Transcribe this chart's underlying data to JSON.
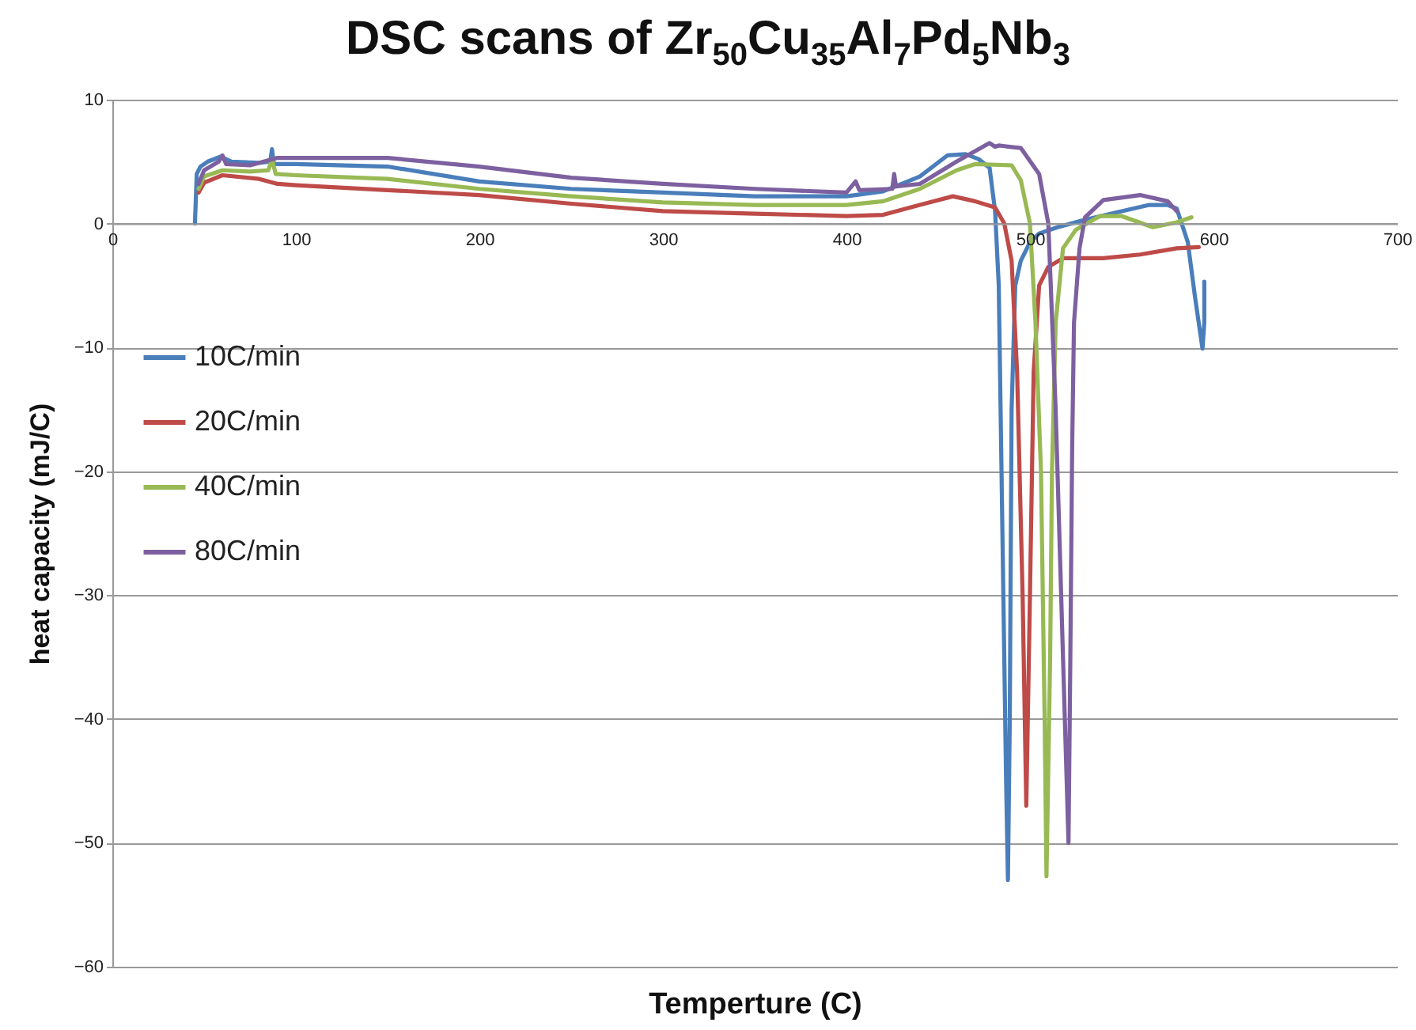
{
  "chart_data": {
    "type": "line",
    "title": "DSC scans of Zr$_{50}$Cu$_{35}$Al$_{7}$Pd$_{5}$Nb$_{3}$",
    "xlabel": "Temperture (C)",
    "ylabel": "heat capacity (mJ/C)",
    "xlim": [
      0,
      700
    ],
    "xticks": [
      0,
      100,
      200,
      300,
      400,
      500,
      600,
      700
    ],
    "ylim": [
      -60,
      10
    ],
    "yticks": [
      -60,
      -50,
      -40,
      -30,
      -20,
      -10,
      0,
      10
    ],
    "grid": "y",
    "legend": "left",
    "line_style": "solid",
    "series": [
      {
        "name": "10C/min",
        "color": "#4a7ebb",
        "x": [
          45,
          46,
          48,
          52,
          59,
          65,
          80,
          86,
          87,
          88,
          100,
          150,
          200,
          250,
          300,
          350,
          400,
          420,
          440,
          455,
          465,
          472,
          478,
          481,
          483,
          485,
          487,
          488,
          489,
          490,
          492,
          495,
          500,
          505,
          515,
          530,
          550,
          565,
          575,
          580,
          586,
          590,
          594,
          595,
          595
        ],
        "values": [
          0,
          4,
          4.6,
          5.0,
          5.4,
          5.0,
          4.9,
          5.0,
          6.0,
          4.8,
          4.8,
          4.6,
          3.4,
          2.8,
          2.5,
          2.2,
          2.2,
          2.6,
          3.8,
          5.5,
          5.6,
          5.2,
          4.5,
          1,
          -5,
          -25,
          -45,
          -53,
          -40,
          -15,
          -5,
          -3,
          -1.5,
          -0.8,
          -0.3,
          0.3,
          1.0,
          1.5,
          1.5,
          1.2,
          -1.5,
          -6,
          -10.1,
          -8,
          -4.7
        ]
      },
      {
        "name": "20C/min",
        "color": "#be4b48",
        "x": [
          47,
          50,
          60,
          80,
          90,
          100,
          150,
          200,
          250,
          300,
          350,
          400,
          420,
          440,
          458,
          470,
          481,
          486,
          490,
          493,
          496,
          498,
          500,
          502,
          505,
          510,
          518,
          540,
          560,
          580,
          592
        ],
        "values": [
          2.5,
          3.3,
          3.9,
          3.6,
          3.2,
          3.1,
          2.7,
          2.3,
          1.6,
          1.0,
          0.8,
          0.6,
          0.7,
          1.5,
          2.2,
          1.8,
          1.3,
          0,
          -3,
          -12,
          -30,
          -47,
          -30,
          -12,
          -5,
          -3.5,
          -2.8,
          -2.8,
          -2.5,
          -2.0,
          -1.9
        ]
      },
      {
        "name": "40C/min",
        "color": "#98b954",
        "x": [
          47,
          50,
          60,
          75,
          85,
          87,
          89,
          100,
          150,
          200,
          250,
          300,
          350,
          400,
          420,
          440,
          460,
          470,
          490,
          495,
          500,
          503,
          506,
          508,
          509,
          511,
          512,
          514,
          518,
          525,
          538,
          550,
          567,
          580,
          588
        ],
        "values": [
          2.8,
          3.8,
          4.3,
          4.2,
          4.3,
          5.2,
          4.0,
          3.9,
          3.6,
          2.8,
          2.2,
          1.7,
          1.5,
          1.5,
          1.8,
          2.8,
          4.3,
          4.8,
          4.7,
          3.5,
          0,
          -8,
          -20,
          -40,
          -52.7,
          -35,
          -20,
          -8,
          -2,
          -0.5,
          0.6,
          0.6,
          -0.3,
          0.1,
          0.5
        ]
      },
      {
        "name": "80C/min",
        "color": "#7d60a0",
        "x": [
          47,
          50,
          58,
          60,
          62,
          75,
          90,
          150,
          200,
          250,
          300,
          350,
          400,
          405,
          407,
          425,
          426,
          427,
          440,
          460,
          478,
          481,
          483,
          495,
          505,
          510,
          514,
          518,
          521,
          522,
          523,
          524,
          527,
          530,
          540,
          560,
          575,
          580
        ],
        "values": [
          3.2,
          4.3,
          5.0,
          5.5,
          4.8,
          4.7,
          5.3,
          5.3,
          4.6,
          3.7,
          3.2,
          2.8,
          2.5,
          3.4,
          2.7,
          2.8,
          4.0,
          3.0,
          3.2,
          5.0,
          6.5,
          6.2,
          6.3,
          6.1,
          4.0,
          0,
          -15,
          -35,
          -50,
          -35,
          -18,
          -8,
          -2,
          0.5,
          1.9,
          2.3,
          1.8,
          1.0
        ]
      }
    ]
  }
}
